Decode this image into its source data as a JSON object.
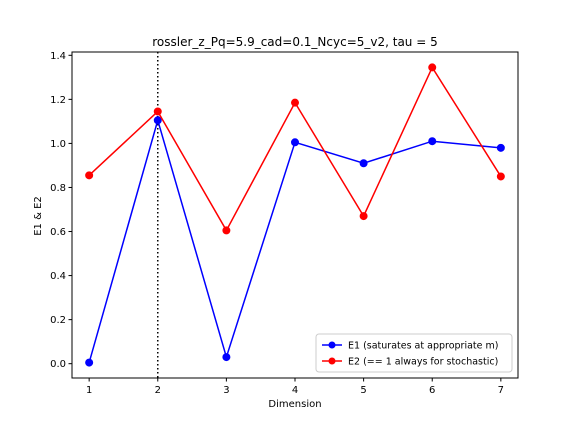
{
  "chart_data": {
    "type": "line",
    "title": "rossler_z_Pq=5.9_cad=0.1_Ncyc=5_v2, tau = 5",
    "xlabel": "Dimension",
    "ylabel": "E1 & E2",
    "x": [
      1,
      2,
      3,
      4,
      5,
      6,
      7
    ],
    "xlim": [
      0.75,
      7.25
    ],
    "ylim": [
      -0.065,
      1.415
    ],
    "xticks": [
      "1",
      "2",
      "3",
      "4",
      "5",
      "6",
      "7"
    ],
    "yticks": [
      "0.0",
      "0.2",
      "0.4",
      "0.6",
      "0.8",
      "1.0",
      "1.2",
      "1.4"
    ],
    "grid": false,
    "legend_position": "lower-right",
    "vline": {
      "x": 2,
      "style": "dotted",
      "color": "#000000"
    },
    "series": [
      {
        "name": "E1 (saturates at appropriate m)",
        "color": "#0000ff",
        "values": [
          0.005,
          1.105,
          0.03,
          1.005,
          0.91,
          1.01,
          0.98
        ]
      },
      {
        "name": "E2 (== 1 always for stochastic)",
        "color": "#ff0000",
        "values": [
          0.855,
          1.145,
          0.605,
          1.185,
          0.67,
          1.345,
          0.85
        ]
      }
    ]
  }
}
